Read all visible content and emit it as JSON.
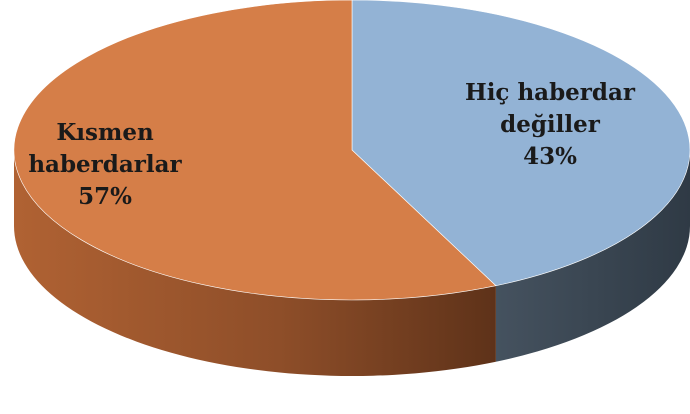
{
  "chart_data": {
    "type": "pie",
    "style": "3d",
    "slices": [
      {
        "label_lines": [
          "Hiç haberdar",
          "değiller"
        ],
        "value": 43,
        "pct_label": "43%",
        "color": "#93B3D5",
        "side_color": "#3D4A58"
      },
      {
        "label_lines": [
          "Kısmen",
          "haberdarlar"
        ],
        "value": 57,
        "pct_label": "57%",
        "color": "#D57E48",
        "side_color": "#7A4626"
      }
    ]
  }
}
